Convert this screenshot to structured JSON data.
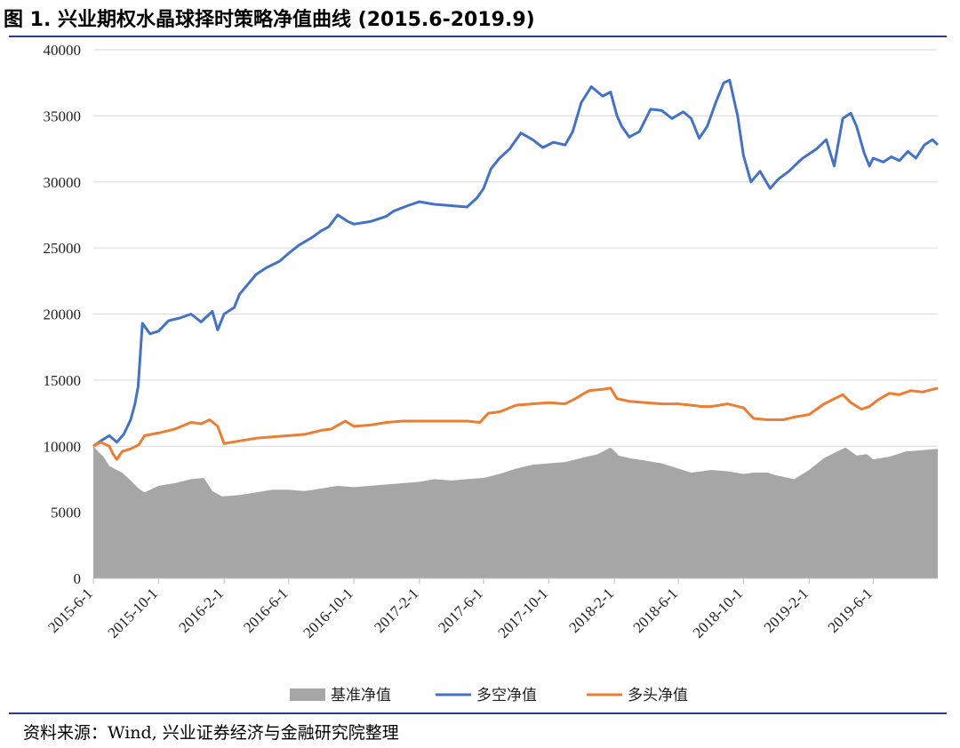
{
  "title": "图 1. 兴业期权水晶球择时策略净值曲线 (2015.6-2019.9)",
  "source_note": "资料来源：Wind, 兴业证券经济与金融研究院整理",
  "colors": {
    "benchmark": "#a6a6a6",
    "long_short": "#4472c4",
    "long_only": "#ed7d31",
    "grid": "#d9d9d9",
    "rule": "#2b3a8c"
  },
  "chart_data": {
    "type": "line",
    "title": "兴业期权水晶球择时策略净值曲线 (2015.6-2019.9)",
    "x_ticks": [
      "2015-6-1",
      "2015-10-1",
      "2016-2-1",
      "2016-6-1",
      "2016-10-1",
      "2017-2-1",
      "2017-6-1",
      "2017-10-1",
      "2018-2-1",
      "2018-6-1",
      "2018-10-1",
      "2019-2-1",
      "2019-6-1"
    ],
    "x_range": [
      "2015-06-01",
      "2019-09-30"
    ],
    "y_ticks": [
      0,
      5000,
      10000,
      15000,
      20000,
      25000,
      30000,
      35000,
      40000
    ],
    "ylim": [
      0,
      40000
    ],
    "grid": "horizontal",
    "legend_position": "bottom",
    "series": [
      {
        "name": "基准净值",
        "style": "area",
        "x": [
          "2015-06-01",
          "2015-06-10",
          "2015-06-20",
          "2015-07-01",
          "2015-07-10",
          "2015-07-25",
          "2015-08-10",
          "2015-08-25",
          "2015-09-05",
          "2015-10-01",
          "2015-11-01",
          "2015-12-01",
          "2015-12-25",
          "2016-01-10",
          "2016-01-28",
          "2016-03-01",
          "2016-04-01",
          "2016-05-01",
          "2016-06-01",
          "2016-07-01",
          "2016-08-01",
          "2016-09-01",
          "2016-10-01",
          "2016-11-01",
          "2016-12-01",
          "2017-01-01",
          "2017-02-01",
          "2017-03-01",
          "2017-04-01",
          "2017-05-01",
          "2017-06-01",
          "2017-07-01",
          "2017-08-01",
          "2017-09-01",
          "2017-10-01",
          "2017-11-01",
          "2017-12-01",
          "2018-01-01",
          "2018-01-25",
          "2018-02-09",
          "2018-03-01",
          "2018-04-01",
          "2018-05-01",
          "2018-06-01",
          "2018-06-25",
          "2018-07-15",
          "2018-08-01",
          "2018-09-01",
          "2018-10-01",
          "2018-10-20",
          "2018-11-15",
          "2018-12-01",
          "2019-01-04",
          "2019-02-01",
          "2019-03-01",
          "2019-04-10",
          "2019-05-01",
          "2019-05-20",
          "2019-06-01",
          "2019-07-01",
          "2019-08-01",
          "2019-09-01",
          "2019-09-30"
        ],
        "values": [
          10000,
          9600,
          9200,
          8500,
          8300,
          8000,
          7400,
          6800,
          6500,
          7000,
          7200,
          7500,
          7600,
          6600,
          6200,
          6300,
          6500,
          6700,
          6700,
          6600,
          6800,
          7000,
          6900,
          7000,
          7100,
          7200,
          7300,
          7500,
          7400,
          7500,
          7600,
          7900,
          8300,
          8600,
          8700,
          8800,
          9100,
          9400,
          9900,
          9300,
          9100,
          8900,
          8700,
          8300,
          8000,
          8100,
          8200,
          8100,
          7900,
          8000,
          8000,
          7800,
          7500,
          8200,
          9100,
          9900,
          9300,
          9400,
          9000,
          9200,
          9600,
          9700,
          9800
        ]
      },
      {
        "name": "多空净值",
        "style": "line",
        "x": [
          "2015-06-01",
          "2015-06-15",
          "2015-07-01",
          "2015-07-15",
          "2015-07-28",
          "2015-08-10",
          "2015-08-18",
          "2015-08-24",
          "2015-09-01",
          "2015-09-15",
          "2015-10-01",
          "2015-10-20",
          "2015-11-10",
          "2015-12-01",
          "2015-12-20",
          "2016-01-10",
          "2016-01-20",
          "2016-02-01",
          "2016-02-20",
          "2016-03-01",
          "2016-04-01",
          "2016-04-20",
          "2016-05-15",
          "2016-06-01",
          "2016-06-20",
          "2016-07-15",
          "2016-08-01",
          "2016-08-15",
          "2016-09-01",
          "2016-09-20",
          "2016-10-01",
          "2016-11-01",
          "2016-12-01",
          "2016-12-15",
          "2017-01-10",
          "2017-02-01",
          "2017-03-01",
          "2017-04-01",
          "2017-05-01",
          "2017-05-20",
          "2017-06-01",
          "2017-06-15",
          "2017-07-01",
          "2017-07-20",
          "2017-08-10",
          "2017-09-01",
          "2017-09-20",
          "2017-10-10",
          "2017-11-01",
          "2017-11-15",
          "2017-12-01",
          "2017-12-20",
          "2018-01-10",
          "2018-01-25",
          "2018-02-06",
          "2018-02-15",
          "2018-03-01",
          "2018-03-20",
          "2018-04-10",
          "2018-05-01",
          "2018-05-20",
          "2018-06-10",
          "2018-06-25",
          "2018-07-10",
          "2018-07-25",
          "2018-08-10",
          "2018-08-25",
          "2018-09-05",
          "2018-09-20",
          "2018-10-01",
          "2018-10-15",
          "2018-11-01",
          "2018-11-20",
          "2018-12-05",
          "2018-12-25",
          "2019-01-04",
          "2019-01-20",
          "2019-02-15",
          "2019-03-05",
          "2019-03-20",
          "2019-04-05",
          "2019-04-20",
          "2019-05-01",
          "2019-05-15",
          "2019-05-25",
          "2019-06-01",
          "2019-06-20",
          "2019-07-05",
          "2019-07-20",
          "2019-08-05",
          "2019-08-20",
          "2019-09-05",
          "2019-09-20",
          "2019-09-30"
        ],
        "values": [
          10000,
          10400,
          10800,
          10300,
          10900,
          12000,
          13200,
          14500,
          19300,
          18500,
          18700,
          19500,
          19700,
          20000,
          19400,
          20200,
          18800,
          20000,
          20500,
          21500,
          23000,
          23500,
          24000,
          24600,
          25200,
          25800,
          26300,
          26600,
          27500,
          27000,
          26800,
          27000,
          27400,
          27800,
          28200,
          28500,
          28300,
          28200,
          28100,
          28800,
          29500,
          31000,
          31800,
          32500,
          33700,
          33200,
          32600,
          33000,
          32800,
          33800,
          36000,
          37200,
          36500,
          36800,
          35000,
          34200,
          33400,
          33800,
          35500,
          35400,
          34800,
          35300,
          34800,
          33300,
          34200,
          36000,
          37500,
          37700,
          35000,
          32000,
          30000,
          30800,
          29500,
          30200,
          30800,
          31200,
          31800,
          32500,
          33200,
          31200,
          34800,
          35200,
          34200,
          32200,
          31200,
          31800,
          31500,
          31900,
          31600,
          32300,
          31800,
          32800,
          33200,
          32800
        ]
      },
      {
        "name": "多头净值",
        "style": "line",
        "x": [
          "2015-06-01",
          "2015-06-15",
          "2015-07-01",
          "2015-07-08",
          "2015-07-15",
          "2015-07-25",
          "2015-08-10",
          "2015-08-25",
          "2015-09-05",
          "2015-10-01",
          "2015-11-01",
          "2015-12-01",
          "2015-12-20",
          "2016-01-05",
          "2016-01-20",
          "2016-02-01",
          "2016-03-01",
          "2016-04-01",
          "2016-05-01",
          "2016-06-01",
          "2016-07-01",
          "2016-08-01",
          "2016-08-20",
          "2016-09-15",
          "2016-10-01",
          "2016-11-01",
          "2016-12-01",
          "2017-01-01",
          "2017-02-01",
          "2017-03-01",
          "2017-04-01",
          "2017-05-01",
          "2017-05-25",
          "2017-06-10",
          "2017-07-01",
          "2017-08-01",
          "2017-09-01",
          "2017-10-01",
          "2017-11-01",
          "2017-11-20",
          "2017-12-15",
          "2018-01-10",
          "2018-01-25",
          "2018-02-06",
          "2018-03-01",
          "2018-04-01",
          "2018-05-01",
          "2018-06-01",
          "2018-06-25",
          "2018-07-15",
          "2018-08-01",
          "2018-09-01",
          "2018-10-01",
          "2018-10-20",
          "2018-11-15",
          "2018-12-15",
          "2019-01-04",
          "2019-02-01",
          "2019-03-01",
          "2019-04-05",
          "2019-04-20",
          "2019-05-10",
          "2019-05-25",
          "2019-06-10",
          "2019-07-01",
          "2019-07-20",
          "2019-08-10",
          "2019-09-01",
          "2019-09-30"
        ],
        "values": [
          10000,
          10300,
          10000,
          9400,
          9000,
          9600,
          9800,
          10100,
          10800,
          11000,
          11300,
          11800,
          11700,
          12000,
          11500,
          10200,
          10400,
          10600,
          10700,
          10800,
          10900,
          11200,
          11300,
          11900,
          11500,
          11600,
          11800,
          11900,
          11900,
          11900,
          11900,
          11900,
          11800,
          12500,
          12600,
          13100,
          13200,
          13300,
          13200,
          13600,
          14200,
          14300,
          14400,
          13600,
          13400,
          13300,
          13200,
          13200,
          13100,
          13000,
          13000,
          13200,
          12900,
          12100,
          12000,
          12000,
          12200,
          12400,
          13200,
          13900,
          13300,
          12800,
          13000,
          13500,
          14000,
          13900,
          14200,
          14100,
          14400
        ]
      }
    ]
  }
}
